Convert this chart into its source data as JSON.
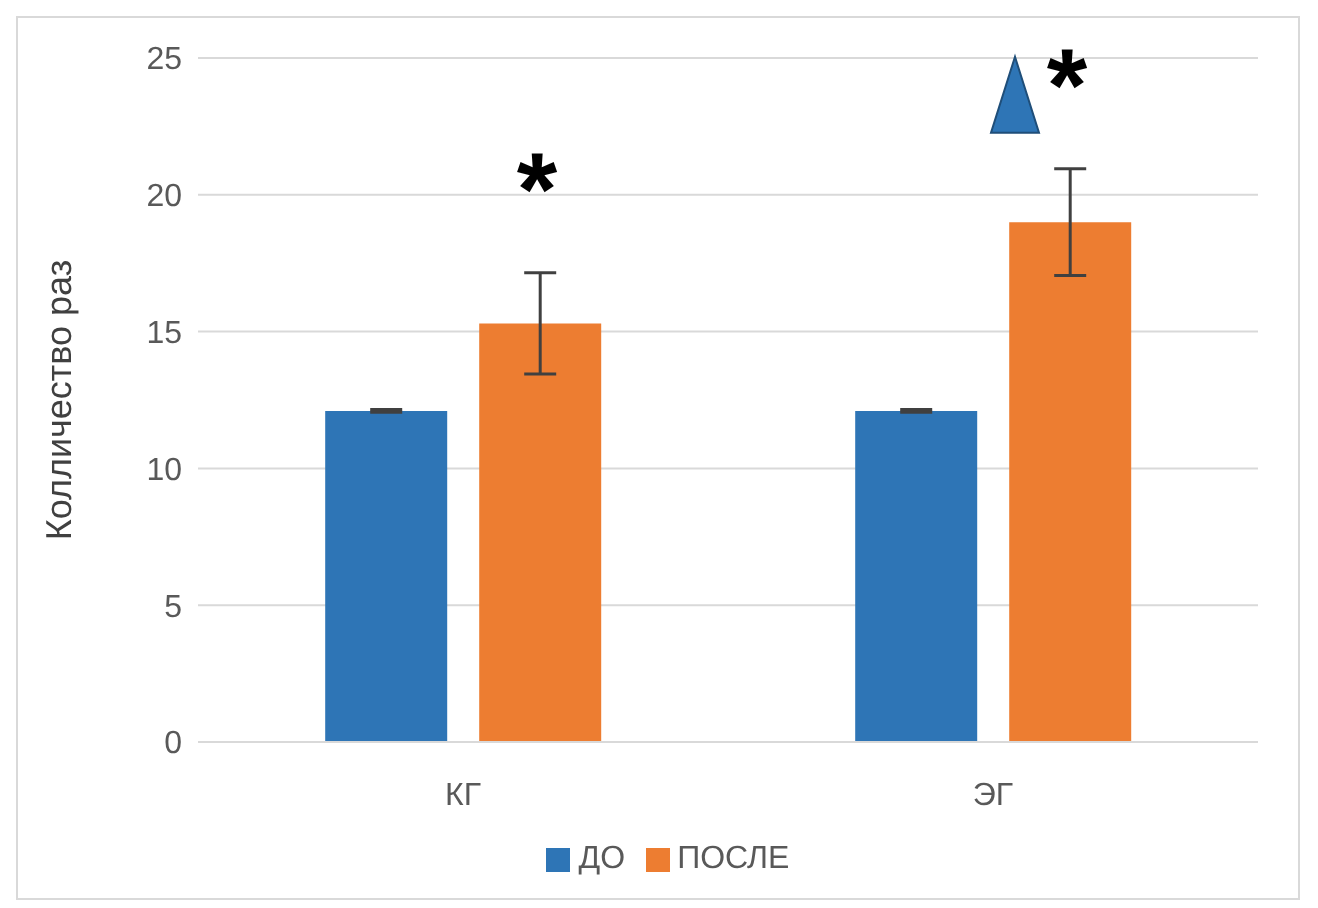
{
  "chart_data": {
    "type": "bar",
    "ylabel": "Колличество раз",
    "categories": [
      "КГ",
      "ЭГ"
    ],
    "series": [
      {
        "name": "ДО",
        "color": "#2e75b6",
        "values": [
          12.1,
          12.1
        ],
        "errors": [
          0.05,
          0.05
        ]
      },
      {
        "name": "ПОСЛЕ",
        "color": "#ed7d31",
        "values": [
          15.3,
          19.0
        ],
        "errors": [
          1.85,
          1.95
        ]
      }
    ],
    "ylim": [
      0,
      25
    ],
    "yticks": [
      0,
      5,
      10,
      15,
      20,
      25
    ],
    "grid": "y",
    "legend": "bottom",
    "annotations": [
      "*",
      "*"
    ]
  }
}
